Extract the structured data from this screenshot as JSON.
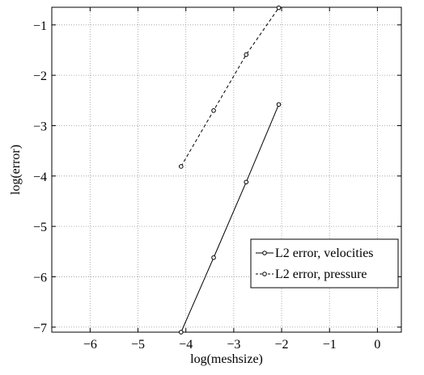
{
  "chart_data": {
    "type": "line",
    "title": "",
    "xlabel": "log(meshsize)",
    "ylabel": "log(error)",
    "xlim": [
      -6.8,
      0.5
    ],
    "ylim": [
      -7.1,
      -0.65
    ],
    "x_ticks": [
      -6,
      -5,
      -4,
      -3,
      -2,
      -1,
      0
    ],
    "y_ticks": [
      -7,
      -6,
      -5,
      -4,
      -3,
      -2,
      -1
    ],
    "x_tick_labels": [
      "−6",
      "−5",
      "−4",
      "−3",
      "−2",
      "−1",
      "0"
    ],
    "y_tick_labels": [
      "−7",
      "−6",
      "−5",
      "−4",
      "−3",
      "−2",
      "−1"
    ],
    "grid": true,
    "legend_position": "lower-right",
    "series": [
      {
        "name": "L2 error, velocities",
        "style": "solid",
        "color": "#000000",
        "x": [
          -4.1,
          -3.42,
          -2.74,
          -2.06
        ],
        "y": [
          -7.1,
          -5.62,
          -4.12,
          -2.58
        ]
      },
      {
        "name": "L2 error, pressure",
        "style": "dashed",
        "color": "#000000",
        "x": [
          -4.1,
          -3.42,
          -2.74,
          -2.06
        ],
        "y": [
          -3.81,
          -2.7,
          -1.59,
          -0.66
        ]
      }
    ]
  }
}
